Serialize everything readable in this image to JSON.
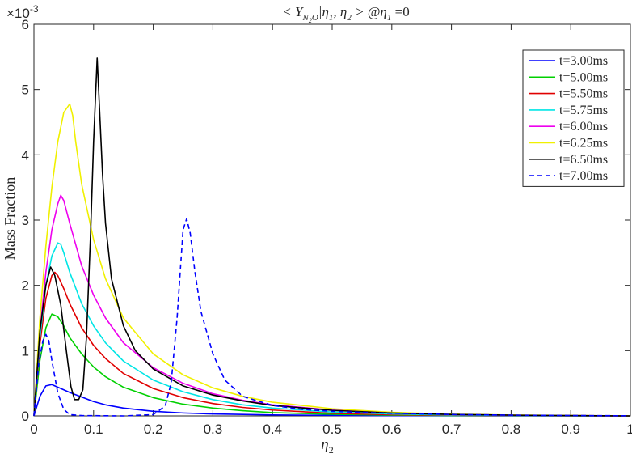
{
  "chart_data": {
    "type": "line",
    "title": "< Y_{N_2O} | η_1 , η_2 > @η_1 =0",
    "title_parts": {
      "left": "< Y",
      "subscript": "N",
      "subsubscript": "2",
      "subscript_tail": "O",
      "mid": "|η",
      "sub1": "1",
      "comma": ", η",
      "sub2": "2",
      "right": " > @η",
      "sub3": "1",
      "tail": " =0"
    },
    "xlabel": "η_2",
    "xlabel_parts": {
      "main": "η",
      "sub": "2"
    },
    "ylabel": "Mass Fraction",
    "y_exponent": "×10",
    "y_exponent_power": "-3",
    "xlim": [
      0,
      1
    ],
    "ylim": [
      0,
      6
    ],
    "x_ticks": [
      "0",
      "0.1",
      "0.2",
      "0.3",
      "0.4",
      "0.5",
      "0.6",
      "0.7",
      "0.8",
      "0.9",
      "1"
    ],
    "y_ticks": [
      "0",
      "1",
      "2",
      "3",
      "4",
      "5",
      "6"
    ],
    "legend_position": "top-right",
    "series": [
      {
        "name": "t=3.00ms",
        "color": "#0000ff",
        "dash": "solid",
        "points": [
          [
            0,
            0
          ],
          [
            0.01,
            0.3
          ],
          [
            0.02,
            0.46
          ],
          [
            0.03,
            0.48
          ],
          [
            0.04,
            0.44
          ],
          [
            0.06,
            0.36
          ],
          [
            0.08,
            0.29
          ],
          [
            0.1,
            0.22
          ],
          [
            0.12,
            0.17
          ],
          [
            0.15,
            0.12
          ],
          [
            0.2,
            0.07
          ],
          [
            0.25,
            0.045
          ],
          [
            0.3,
            0.03
          ],
          [
            0.4,
            0.015
          ],
          [
            0.5,
            0.008
          ],
          [
            0.6,
            0.004
          ],
          [
            0.8,
            0.001
          ],
          [
            1,
            0
          ]
        ]
      },
      {
        "name": "t=5.00ms",
        "color": "#00d000",
        "dash": "solid",
        "points": [
          [
            0,
            0
          ],
          [
            0.01,
            0.85
          ],
          [
            0.02,
            1.35
          ],
          [
            0.03,
            1.56
          ],
          [
            0.04,
            1.52
          ],
          [
            0.05,
            1.38
          ],
          [
            0.06,
            1.2
          ],
          [
            0.08,
            0.95
          ],
          [
            0.1,
            0.75
          ],
          [
            0.12,
            0.6
          ],
          [
            0.15,
            0.44
          ],
          [
            0.2,
            0.28
          ],
          [
            0.25,
            0.18
          ],
          [
            0.3,
            0.12
          ],
          [
            0.35,
            0.08
          ],
          [
            0.4,
            0.05
          ],
          [
            0.5,
            0.025
          ],
          [
            0.6,
            0.012
          ],
          [
            0.7,
            0.006
          ],
          [
            0.8,
            0.003
          ],
          [
            1,
            0
          ]
        ]
      },
      {
        "name": "t=5.50ms",
        "color": "#e00000",
        "dash": "solid",
        "points": [
          [
            0,
            0
          ],
          [
            0.01,
            1.1
          ],
          [
            0.02,
            1.8
          ],
          [
            0.03,
            2.15
          ],
          [
            0.035,
            2.2
          ],
          [
            0.04,
            2.15
          ],
          [
            0.05,
            1.95
          ],
          [
            0.06,
            1.72
          ],
          [
            0.08,
            1.35
          ],
          [
            0.1,
            1.08
          ],
          [
            0.12,
            0.88
          ],
          [
            0.15,
            0.65
          ],
          [
            0.2,
            0.42
          ],
          [
            0.25,
            0.28
          ],
          [
            0.3,
            0.19
          ],
          [
            0.35,
            0.13
          ],
          [
            0.4,
            0.09
          ],
          [
            0.5,
            0.04
          ],
          [
            0.6,
            0.02
          ],
          [
            0.7,
            0.01
          ],
          [
            0.8,
            0.005
          ],
          [
            1,
            0
          ]
        ]
      },
      {
        "name": "t=5.75ms",
        "color": "#00e5e5",
        "dash": "solid",
        "points": [
          [
            0,
            0
          ],
          [
            0.01,
            1.2
          ],
          [
            0.02,
            2.0
          ],
          [
            0.03,
            2.45
          ],
          [
            0.04,
            2.65
          ],
          [
            0.045,
            2.63
          ],
          [
            0.05,
            2.5
          ],
          [
            0.06,
            2.2
          ],
          [
            0.08,
            1.72
          ],
          [
            0.1,
            1.38
          ],
          [
            0.12,
            1.12
          ],
          [
            0.15,
            0.84
          ],
          [
            0.2,
            0.55
          ],
          [
            0.25,
            0.37
          ],
          [
            0.3,
            0.25
          ],
          [
            0.35,
            0.17
          ],
          [
            0.4,
            0.12
          ],
          [
            0.5,
            0.06
          ],
          [
            0.6,
            0.03
          ],
          [
            0.7,
            0.015
          ],
          [
            0.8,
            0.007
          ],
          [
            1,
            0
          ]
        ]
      },
      {
        "name": "t=6.00ms",
        "color": "#ee00ee",
        "dash": "solid",
        "points": [
          [
            0,
            0
          ],
          [
            0.01,
            1.3
          ],
          [
            0.02,
            2.2
          ],
          [
            0.03,
            2.85
          ],
          [
            0.04,
            3.25
          ],
          [
            0.045,
            3.38
          ],
          [
            0.05,
            3.3
          ],
          [
            0.06,
            2.95
          ],
          [
            0.08,
            2.3
          ],
          [
            0.1,
            1.85
          ],
          [
            0.12,
            1.5
          ],
          [
            0.15,
            1.12
          ],
          [
            0.2,
            0.74
          ],
          [
            0.25,
            0.5
          ],
          [
            0.3,
            0.34
          ],
          [
            0.35,
            0.24
          ],
          [
            0.4,
            0.17
          ],
          [
            0.5,
            0.09
          ],
          [
            0.6,
            0.045
          ],
          [
            0.7,
            0.022
          ],
          [
            0.8,
            0.01
          ],
          [
            1,
            0
          ]
        ]
      },
      {
        "name": "t=6.25ms",
        "color": "#f0f000",
        "dash": "solid",
        "points": [
          [
            0,
            0
          ],
          [
            0.01,
            1.5
          ],
          [
            0.02,
            2.6
          ],
          [
            0.03,
            3.5
          ],
          [
            0.04,
            4.2
          ],
          [
            0.05,
            4.65
          ],
          [
            0.06,
            4.78
          ],
          [
            0.065,
            4.6
          ],
          [
            0.07,
            4.2
          ],
          [
            0.08,
            3.55
          ],
          [
            0.1,
            2.7
          ],
          [
            0.12,
            2.1
          ],
          [
            0.15,
            1.5
          ],
          [
            0.2,
            0.95
          ],
          [
            0.25,
            0.63
          ],
          [
            0.3,
            0.43
          ],
          [
            0.35,
            0.3
          ],
          [
            0.4,
            0.21
          ],
          [
            0.5,
            0.11
          ],
          [
            0.6,
            0.055
          ],
          [
            0.7,
            0.027
          ],
          [
            0.8,
            0.013
          ],
          [
            1,
            0
          ]
        ]
      },
      {
        "name": "t=6.50ms",
        "color": "#000000",
        "dash": "solid",
        "points": [
          [
            0,
            0
          ],
          [
            0.01,
            1.3
          ],
          [
            0.02,
            2.0
          ],
          [
            0.028,
            2.28
          ],
          [
            0.035,
            2.15
          ],
          [
            0.045,
            1.7
          ],
          [
            0.055,
            0.95
          ],
          [
            0.062,
            0.45
          ],
          [
            0.068,
            0.25
          ],
          [
            0.075,
            0.25
          ],
          [
            0.082,
            0.4
          ],
          [
            0.088,
            1.2
          ],
          [
            0.095,
            2.8
          ],
          [
            0.1,
            4.2
          ],
          [
            0.106,
            5.48
          ],
          [
            0.11,
            4.7
          ],
          [
            0.115,
            3.7
          ],
          [
            0.12,
            2.95
          ],
          [
            0.13,
            2.1
          ],
          [
            0.15,
            1.38
          ],
          [
            0.17,
            1.0
          ],
          [
            0.2,
            0.72
          ],
          [
            0.25,
            0.46
          ],
          [
            0.3,
            0.32
          ],
          [
            0.35,
            0.23
          ],
          [
            0.4,
            0.16
          ],
          [
            0.5,
            0.085
          ],
          [
            0.6,
            0.045
          ],
          [
            0.7,
            0.023
          ],
          [
            0.8,
            0.011
          ],
          [
            1,
            0
          ]
        ]
      },
      {
        "name": "t=7.00ms",
        "color": "#0000ff",
        "dash": "dashed",
        "points": [
          [
            0,
            0
          ],
          [
            0.008,
            0.8
          ],
          [
            0.015,
            1.15
          ],
          [
            0.02,
            1.25
          ],
          [
            0.025,
            1.15
          ],
          [
            0.03,
            0.85
          ],
          [
            0.04,
            0.35
          ],
          [
            0.05,
            0.1
          ],
          [
            0.06,
            0.02
          ],
          [
            0.08,
            0.005
          ],
          [
            0.15,
            0.0
          ],
          [
            0.2,
            0.02
          ],
          [
            0.22,
            0.15
          ],
          [
            0.23,
            0.5
          ],
          [
            0.24,
            1.5
          ],
          [
            0.25,
            2.85
          ],
          [
            0.256,
            3.02
          ],
          [
            0.262,
            2.8
          ],
          [
            0.27,
            2.2
          ],
          [
            0.28,
            1.6
          ],
          [
            0.3,
            0.95
          ],
          [
            0.32,
            0.55
          ],
          [
            0.35,
            0.3
          ],
          [
            0.4,
            0.16
          ],
          [
            0.45,
            0.1
          ],
          [
            0.5,
            0.07
          ],
          [
            0.6,
            0.04
          ],
          [
            0.7,
            0.022
          ],
          [
            0.8,
            0.012
          ],
          [
            0.9,
            0.006
          ],
          [
            1,
            0.002
          ]
        ]
      }
    ]
  }
}
